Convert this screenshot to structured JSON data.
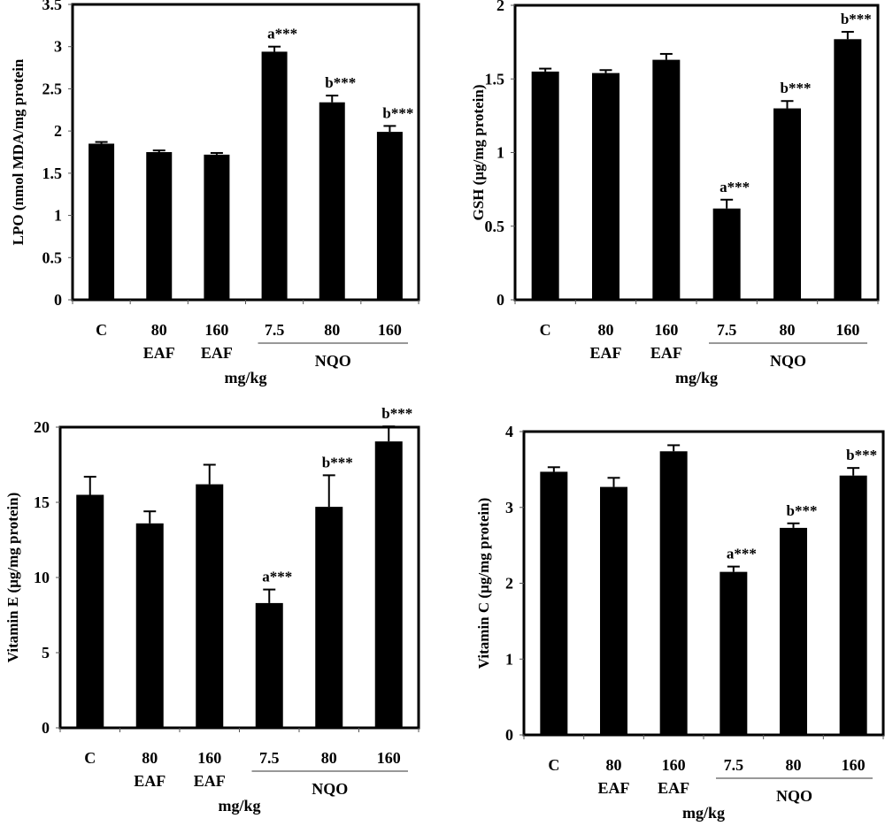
{
  "chart_data": [
    {
      "type": "bar",
      "ylabel": "LPO (nmol MDA/mg protein",
      "xlabel": "mg/kg",
      "ylim": [
        0,
        3.5
      ],
      "yticks": [
        "0",
        "0.5",
        "1",
        "1.5",
        "2",
        "2.5",
        "3",
        "3.5"
      ],
      "categories": [
        "C",
        "80",
        "160",
        "7.5",
        "80",
        "160"
      ],
      "category_sublabels": [
        "",
        "EAF",
        "EAF",
        "",
        "",
        ""
      ],
      "group_label": "NQO",
      "values": [
        1.85,
        1.75,
        1.72,
        2.94,
        2.34,
        1.99
      ],
      "errors": [
        0.02,
        0.02,
        0.02,
        0.06,
        0.08,
        0.07
      ],
      "annotations": [
        "",
        "",
        "",
        "a***",
        "b***",
        "b***"
      ],
      "bar_color": "#000000"
    },
    {
      "type": "bar",
      "ylabel": "GSH (µg/mg protein)",
      "xlabel": "mg/kg",
      "ylim": [
        0,
        2
      ],
      "yticks": [
        "0",
        "0.5",
        "1",
        "1.5",
        "2"
      ],
      "categories": [
        "C",
        "80",
        "160",
        "7.5",
        "80",
        "160"
      ],
      "category_sublabels": [
        "",
        "EAF",
        "EAF",
        "",
        "",
        ""
      ],
      "group_label": "NQO",
      "values": [
        1.55,
        1.54,
        1.63,
        0.62,
        1.3,
        1.77
      ],
      "errors": [
        0.02,
        0.02,
        0.04,
        0.06,
        0.05,
        0.05
      ],
      "annotations": [
        "",
        "",
        "",
        "a***",
        "b***",
        "b***"
      ],
      "bar_color": "#000000"
    },
    {
      "type": "bar",
      "ylabel": "Vitamin E (µg/mg protein)",
      "xlabel": "mg/kg",
      "ylim": [
        0,
        20
      ],
      "yticks": [
        "0",
        "5",
        "10",
        "15",
        "20"
      ],
      "categories": [
        "C",
        "80",
        "160",
        "7.5",
        "80",
        "160"
      ],
      "category_sublabels": [
        "",
        "EAF",
        "EAF",
        "",
        "",
        ""
      ],
      "group_label": "NQO",
      "values": [
        15.5,
        13.6,
        16.2,
        8.3,
        14.7,
        19.05
      ],
      "errors": [
        1.2,
        0.8,
        1.3,
        0.9,
        2.1,
        1.0
      ],
      "annotations": [
        "",
        "",
        "",
        "a***",
        "b***",
        "b***"
      ],
      "bar_color": "#000000"
    },
    {
      "type": "bar",
      "ylabel": "Vitamin C (µg/mg protein)",
      "xlabel": "mg/kg",
      "ylim": [
        0,
        4
      ],
      "yticks": [
        "0",
        "1",
        "2",
        "3",
        "4"
      ],
      "categories": [
        "C",
        "80",
        "160",
        "7.5",
        "80",
        "160"
      ],
      "category_sublabels": [
        "",
        "EAF",
        "EAF",
        "",
        "",
        ""
      ],
      "group_label": "NQO",
      "values": [
        3.47,
        3.27,
        3.74,
        2.15,
        2.73,
        3.42
      ],
      "errors": [
        0.06,
        0.12,
        0.08,
        0.07,
        0.06,
        0.1
      ],
      "annotations": [
        "",
        "",
        "",
        "a***",
        "b***",
        "b***"
      ],
      "bar_color": "#000000"
    }
  ]
}
